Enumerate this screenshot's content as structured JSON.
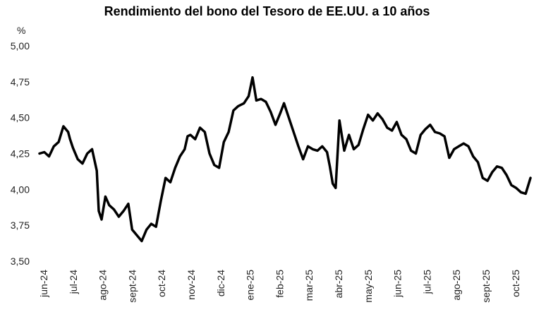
{
  "chart_data": {
    "type": "line",
    "title": "Rendimiento del bono del Tesoro de EE.UU. a 10 años",
    "ylabel": "%",
    "xlabel": "",
    "ylim": [
      3.5,
      5.0
    ],
    "y_ticks": [
      "5,00",
      "4,75",
      "4,50",
      "4,25",
      "4,00",
      "3,75",
      "3,50"
    ],
    "x_ticks": [
      "jun-24",
      "jul-24",
      "ago-24",
      "sept-24",
      "oct-24",
      "nov-24",
      "dic-24",
      "ene-25",
      "feb-25",
      "mar-25",
      "abr-25",
      "may-25",
      "jun-25",
      "jul-25",
      "ago-25",
      "sept-25",
      "oct-25"
    ],
    "grid": false,
    "line_color": "#000000",
    "series": [
      {
        "x": [
          "2024-06-01",
          "2024-06-06",
          "2024-06-11",
          "2024-06-16",
          "2024-06-21",
          "2024-06-26",
          "2024-07-01",
          "2024-07-03",
          "2024-07-06",
          "2024-07-11",
          "2024-07-16",
          "2024-07-21",
          "2024-07-26",
          "2024-07-31",
          "2024-08-02",
          "2024-08-05",
          "2024-08-09",
          "2024-08-13",
          "2024-08-18",
          "2024-08-23",
          "2024-08-28",
          "2024-09-02",
          "2024-09-06",
          "2024-09-11",
          "2024-09-16",
          "2024-09-21",
          "2024-09-26",
          "2024-10-01",
          "2024-10-06",
          "2024-10-11",
          "2024-10-16",
          "2024-10-21",
          "2024-10-26",
          "2024-10-31",
          "2024-11-03",
          "2024-11-06",
          "2024-11-11",
          "2024-11-16",
          "2024-11-21",
          "2024-11-26",
          "2024-12-01",
          "2024-12-06",
          "2024-12-11",
          "2024-12-16",
          "2024-12-21",
          "2024-12-26",
          "2025-01-01",
          "2025-01-06",
          "2025-01-10",
          "2025-01-14",
          "2025-01-19",
          "2025-01-24",
          "2025-01-29",
          "2025-02-03",
          "2025-02-08",
          "2025-02-12",
          "2025-02-17",
          "2025-02-22",
          "2025-02-27",
          "2025-03-04",
          "2025-03-09",
          "2025-03-14",
          "2025-03-19",
          "2025-03-24",
          "2025-03-29",
          "2025-04-01",
          "2025-04-04",
          "2025-04-07",
          "2025-04-11",
          "2025-04-16",
          "2025-04-21",
          "2025-04-26",
          "2025-05-01",
          "2025-05-06",
          "2025-05-11",
          "2025-05-16",
          "2025-05-21",
          "2025-05-26",
          "2025-05-31",
          "2025-06-05",
          "2025-06-10",
          "2025-06-15",
          "2025-06-20",
          "2025-06-25",
          "2025-06-30",
          "2025-07-05",
          "2025-07-10",
          "2025-07-15",
          "2025-07-20",
          "2025-07-25",
          "2025-07-30",
          "2025-08-04",
          "2025-08-09",
          "2025-08-14",
          "2025-08-19",
          "2025-08-24",
          "2025-08-29",
          "2025-09-03",
          "2025-09-08",
          "2025-09-13",
          "2025-09-18",
          "2025-09-23",
          "2025-09-28",
          "2025-10-03",
          "2025-10-08",
          "2025-10-13",
          "2025-10-18",
          "2025-10-23",
          "2025-10-28"
        ],
        "values": [
          4.25,
          4.26,
          4.23,
          4.3,
          4.33,
          4.44,
          4.4,
          4.35,
          4.29,
          4.21,
          4.18,
          4.25,
          4.28,
          4.13,
          3.85,
          3.79,
          3.95,
          3.89,
          3.86,
          3.81,
          3.85,
          3.9,
          3.72,
          3.68,
          3.64,
          3.72,
          3.76,
          3.74,
          3.92,
          4.08,
          4.05,
          4.15,
          4.23,
          4.28,
          4.37,
          4.38,
          4.35,
          4.43,
          4.4,
          4.25,
          4.17,
          4.15,
          4.33,
          4.4,
          4.55,
          4.58,
          4.6,
          4.65,
          4.78,
          4.62,
          4.63,
          4.61,
          4.54,
          4.45,
          4.53,
          4.6,
          4.5,
          4.4,
          4.3,
          4.21,
          4.3,
          4.28,
          4.27,
          4.3,
          4.26,
          4.16,
          4.04,
          4.01,
          4.48,
          4.27,
          4.38,
          4.28,
          4.31,
          4.42,
          4.52,
          4.48,
          4.53,
          4.49,
          4.43,
          4.41,
          4.47,
          4.38,
          4.35,
          4.27,
          4.25,
          4.38,
          4.42,
          4.45,
          4.4,
          4.39,
          4.37,
          4.22,
          4.28,
          4.3,
          4.32,
          4.3,
          4.23,
          4.19,
          4.08,
          4.06,
          4.12,
          4.16,
          4.15,
          4.1,
          4.03,
          4.01,
          3.98,
          3.97,
          4.08
        ]
      }
    ]
  }
}
